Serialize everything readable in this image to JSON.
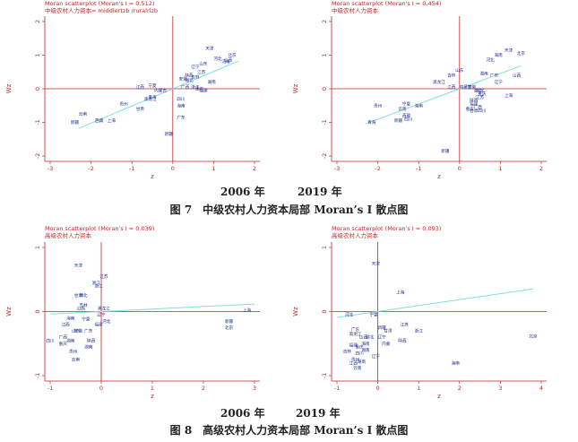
{
  "figures": {
    "fig7": {
      "caption": "图 7　中级农村人力资本局部 Moran’s I 散点图",
      "year_left": "2006 年",
      "year_right": "2019 年"
    },
    "fig8": {
      "caption": "图 8　高级农村人力资本局部 Moran’s I 散点图",
      "year_left": "2006 年",
      "year_right": "2019 年"
    }
  },
  "colors": {
    "axis": "#c0282a",
    "points": "#1c2a8f",
    "fit": "#7fe0dc"
  },
  "chart_data": [
    {
      "type": "scatter",
      "title": "Moran scatterplot (Moran's I = 0.512)",
      "subtitle": "中级农村人力资本= middlertzb /ruralrlzb",
      "xlabel": "z",
      "ylabel": "Wz",
      "xlim": [
        -3,
        2
      ],
      "ylim": [
        -2,
        2
      ],
      "xticks": [
        -3,
        -2,
        -1,
        0,
        1,
        2
      ],
      "yticks": [
        -2,
        -1,
        0,
        1,
        2
      ],
      "fit": {
        "slope": 0.512,
        "x": [
          -2.3,
          1.6
        ]
      },
      "points": [
        {
          "label": "天津",
          "x": 0.9,
          "y": 1.2
        },
        {
          "label": "北京",
          "x": 1.45,
          "y": 1.0
        },
        {
          "label": "河北",
          "x": 1.1,
          "y": 0.9
        },
        {
          "label": "河南",
          "x": 1.3,
          "y": 0.8
        },
        {
          "label": "山西",
          "x": 1.35,
          "y": 0.85
        },
        {
          "label": "山东",
          "x": 0.75,
          "y": 0.75
        },
        {
          "label": "辽宁",
          "x": 0.55,
          "y": 0.65
        },
        {
          "label": "江苏",
          "x": 0.7,
          "y": 0.5
        },
        {
          "label": "陕西",
          "x": 0.4,
          "y": 0.4
        },
        {
          "label": "吉林",
          "x": 0.55,
          "y": 0.35
        },
        {
          "label": "安徽",
          "x": 0.25,
          "y": 0.3
        },
        {
          "label": "湖北",
          "x": 0.4,
          "y": 0.25
        },
        {
          "label": "湖南",
          "x": 0.95,
          "y": 0.2
        },
        {
          "label": "广西",
          "x": 0.3,
          "y": 0.05
        },
        {
          "label": "浙江",
          "x": 0.55,
          "y": 0.05
        },
        {
          "label": "福建",
          "x": 0.75,
          "y": -0.05
        },
        {
          "label": "重庆",
          "x": 0.65,
          "y": 0.0
        },
        {
          "label": "江西",
          "x": -0.8,
          "y": 0.05
        },
        {
          "label": "宁夏",
          "x": -0.5,
          "y": 0.1
        },
        {
          "label": "内蒙古",
          "x": -0.3,
          "y": -0.05
        },
        {
          "label": "青海",
          "x": -0.5,
          "y": -0.25
        },
        {
          "label": "黑龙江",
          "x": -0.55,
          "y": -0.3
        },
        {
          "label": "四川",
          "x": 0.2,
          "y": -0.3
        },
        {
          "label": "海南",
          "x": 0.2,
          "y": -0.5
        },
        {
          "label": "贵州",
          "x": -1.2,
          "y": -0.45
        },
        {
          "label": "甘肃",
          "x": -0.8,
          "y": -0.6
        },
        {
          "label": "广东",
          "x": 0.2,
          "y": -0.85
        },
        {
          "label": "云南",
          "x": -2.2,
          "y": -0.75
        },
        {
          "label": "西藏",
          "x": -1.8,
          "y": -0.95
        },
        {
          "label": "上海",
          "x": -1.5,
          "y": -0.95
        },
        {
          "label": "新疆",
          "x": -2.4,
          "y": -1.0
        },
        {
          "label": "新疆",
          "x": -0.1,
          "y": -1.35
        }
      ]
    },
    {
      "type": "scatter",
      "title": "Moran scatterplot (Moran's I = 0.454)",
      "subtitle": "中级农村人力资本",
      "xlabel": "z",
      "ylabel": "Wz",
      "xlim": [
        -3,
        2
      ],
      "ylim": [
        -2,
        2
      ],
      "xticks": [
        -3,
        -2,
        -1,
        0,
        1,
        2
      ],
      "yticks": [
        -2,
        -1,
        0,
        1,
        2
      ],
      "fit": {
        "slope": 0.454,
        "x": [
          -2.3,
          1.5
        ]
      },
      "points": [
        {
          "label": "天津",
          "x": 1.2,
          "y": 1.15
        },
        {
          "label": "北京",
          "x": 1.5,
          "y": 1.05
        },
        {
          "label": "海南",
          "x": 0.95,
          "y": 1.0
        },
        {
          "label": "河北",
          "x": 0.75,
          "y": 0.85
        },
        {
          "label": "山东",
          "x": 0.0,
          "y": 0.55
        },
        {
          "label": "吉林",
          "x": -0.2,
          "y": 0.4
        },
        {
          "label": "湖南",
          "x": 0.6,
          "y": 0.45
        },
        {
          "label": "广东",
          "x": 0.85,
          "y": 0.4
        },
        {
          "label": "山西",
          "x": 1.4,
          "y": 0.4
        },
        {
          "label": "辽宁",
          "x": 0.95,
          "y": 0.2
        },
        {
          "label": "黑龙江",
          "x": -0.5,
          "y": 0.2
        },
        {
          "label": "江西",
          "x": -0.2,
          "y": 0.05
        },
        {
          "label": "内蒙古",
          "x": 0.15,
          "y": 0.05
        },
        {
          "label": "安徽",
          "x": 0.3,
          "y": 0.05
        },
        {
          "label": "浙江",
          "x": 0.45,
          "y": -0.05
        },
        {
          "label": "湖北",
          "x": 0.5,
          "y": -0.05
        },
        {
          "label": "重庆",
          "x": 0.55,
          "y": -0.15
        },
        {
          "label": "江苏",
          "x": 0.5,
          "y": -0.25
        },
        {
          "label": "上海",
          "x": 1.2,
          "y": -0.2
        },
        {
          "label": "陕西",
          "x": 0.35,
          "y": -0.35
        },
        {
          "label": "福建",
          "x": 0.35,
          "y": -0.45
        },
        {
          "label": "广西",
          "x": 0.45,
          "y": -0.55
        },
        {
          "label": "甘肃",
          "x": 0.35,
          "y": -0.65
        },
        {
          "label": "四川",
          "x": 0.55,
          "y": -0.65
        },
        {
          "label": "重庆",
          "x": 0.25,
          "y": -0.6
        },
        {
          "label": "贵州",
          "x": -2.0,
          "y": -0.5
        },
        {
          "label": "宁夏",
          "x": -1.3,
          "y": -0.45
        },
        {
          "label": "云南",
          "x": -1.4,
          "y": -0.6
        },
        {
          "label": "海南",
          "x": -1.0,
          "y": -0.5
        },
        {
          "label": "西藏",
          "x": -1.3,
          "y": -0.8
        },
        {
          "label": "四川",
          "x": -1.25,
          "y": -0.9
        },
        {
          "label": "新疆",
          "x": -1.5,
          "y": -0.95
        },
        {
          "label": "青海",
          "x": -2.15,
          "y": -1.0
        },
        {
          "label": "新疆",
          "x": -0.35,
          "y": -1.85
        }
      ]
    },
    {
      "type": "scatter",
      "title": "Moran scatterplot (Moran's I = 0.039)",
      "subtitle": "高级农村人力资本",
      "xlabel": "z",
      "ylabel": "Wz",
      "xlim": [
        -1,
        3
      ],
      "ylim": [
        -1,
        1
      ],
      "xticks": [
        -1,
        0,
        1,
        2,
        3
      ],
      "yticks": [
        -1,
        0,
        1
      ],
      "fit": {
        "slope": 0.039,
        "x": [
          -1,
          3
        ]
      },
      "points": [
        {
          "label": "天津",
          "x": -0.45,
          "y": 0.72
        },
        {
          "label": "江苏",
          "x": 0.05,
          "y": 0.55
        },
        {
          "label": "浙江",
          "x": -0.1,
          "y": 0.45
        },
        {
          "label": "浙江",
          "x": -0.05,
          "y": 0.4
        },
        {
          "label": "甘肃",
          "x": -0.45,
          "y": 0.25
        },
        {
          "label": "湖北",
          "x": -0.35,
          "y": 0.25
        },
        {
          "label": "吉林",
          "x": -0.35,
          "y": 0.1
        },
        {
          "label": "黑龙江",
          "x": 0.05,
          "y": 0.05
        },
        {
          "label": "山西",
          "x": -0.4,
          "y": 0.05
        },
        {
          "label": "辽宁",
          "x": 0.0,
          "y": -0.05
        },
        {
          "label": "海南",
          "x": -0.6,
          "y": -0.1
        },
        {
          "label": "宁夏",
          "x": -0.3,
          "y": -0.12
        },
        {
          "label": "河北",
          "x": 0.1,
          "y": -0.15
        },
        {
          "label": "福建",
          "x": -0.05,
          "y": -0.2
        },
        {
          "label": "江西",
          "x": -0.7,
          "y": -0.2
        },
        {
          "label": "山东",
          "x": -0.5,
          "y": -0.3
        },
        {
          "label": "安徽",
          "x": -0.45,
          "y": -0.3
        },
        {
          "label": "广东",
          "x": -0.25,
          "y": -0.3
        },
        {
          "label": "四川",
          "x": -1.0,
          "y": -0.45
        },
        {
          "label": "广西",
          "x": -0.75,
          "y": -0.4
        },
        {
          "label": "湖南",
          "x": -0.6,
          "y": -0.45
        },
        {
          "label": "陕西",
          "x": -0.2,
          "y": -0.45
        },
        {
          "label": "重庆",
          "x": -0.75,
          "y": -0.5
        },
        {
          "label": "湖南",
          "x": -0.25,
          "y": -0.55
        },
        {
          "label": "贵州",
          "x": -0.55,
          "y": -0.62
        },
        {
          "label": "云南",
          "x": -0.5,
          "y": -0.75
        },
        {
          "label": "上海",
          "x": 2.85,
          "y": 0.02
        },
        {
          "label": "新疆",
          "x": 2.5,
          "y": -0.15
        },
        {
          "label": "北京",
          "x": 2.5,
          "y": -0.25
        }
      ]
    },
    {
      "type": "scatter",
      "title": "Moran scatterplot (Moran's I = 0.093)",
      "subtitle": "高级农村人力资本",
      "xlabel": "z",
      "ylabel": "Wz",
      "xlim": [
        -1,
        4
      ],
      "ylim": [
        -1,
        1
      ],
      "xticks": [
        -1,
        0,
        1,
        2,
        3,
        4
      ],
      "yticks": [
        -1,
        0,
        1
      ],
      "fit": {
        "slope": 0.093,
        "x": [
          -1,
          3.8
        ]
      },
      "points": [
        {
          "label": "天津",
          "x": -0.05,
          "y": 0.75
        },
        {
          "label": "上海",
          "x": 0.55,
          "y": 0.3
        },
        {
          "label": "河北",
          "x": -0.7,
          "y": -0.05
        },
        {
          "label": "宁夏",
          "x": -0.1,
          "y": -0.05
        },
        {
          "label": "江苏",
          "x": 0.65,
          "y": -0.2
        },
        {
          "label": "新疆",
          "x": 0.1,
          "y": -0.25
        },
        {
          "label": "浙江",
          "x": 1.0,
          "y": -0.3
        },
        {
          "label": "广东",
          "x": -0.55,
          "y": -0.28
        },
        {
          "label": "甘肃",
          "x": 0.25,
          "y": -0.3
        },
        {
          "label": "黑龙江",
          "x": -0.55,
          "y": -0.35
        },
        {
          "label": "北京",
          "x": 3.8,
          "y": -0.38
        },
        {
          "label": "山西",
          "x": -0.35,
          "y": -0.4
        },
        {
          "label": "湖北",
          "x": -0.2,
          "y": -0.4
        },
        {
          "label": "辽宁",
          "x": 0.1,
          "y": -0.4
        },
        {
          "label": "陕西",
          "x": 0.6,
          "y": -0.45
        },
        {
          "label": "内蒙",
          "x": 0.2,
          "y": -0.5
        },
        {
          "label": "海南",
          "x": -0.3,
          "y": -0.5
        },
        {
          "label": "福建",
          "x": -0.6,
          "y": -0.52
        },
        {
          "label": "重庆",
          "x": -0.45,
          "y": -0.55
        },
        {
          "label": "湖南",
          "x": -0.3,
          "y": -0.6
        },
        {
          "label": "吉林",
          "x": -0.75,
          "y": -0.62
        },
        {
          "label": "四川",
          "x": -0.45,
          "y": -0.65
        },
        {
          "label": "辽宁",
          "x": -0.05,
          "y": -0.7
        },
        {
          "label": "贵州",
          "x": -0.55,
          "y": -0.75
        },
        {
          "label": "湖南",
          "x": -0.4,
          "y": -0.78
        },
        {
          "label": "江西",
          "x": -0.6,
          "y": -0.8
        },
        {
          "label": "云南",
          "x": -0.5,
          "y": -0.88
        },
        {
          "label": "海南",
          "x": 1.9,
          "y": -0.8
        }
      ]
    }
  ]
}
